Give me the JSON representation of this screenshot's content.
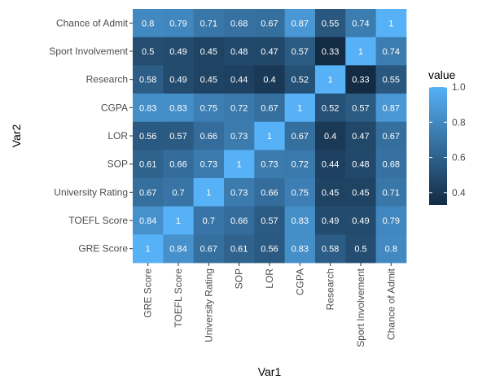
{
  "chart_data": {
    "type": "heatmap",
    "xlabel": "Var1",
    "ylabel": "Var2",
    "categories": [
      "GRE Score",
      "TOEFL Score",
      "University Rating",
      "SOP",
      "LOR",
      "CGPA",
      "Research",
      "Sport Involvement",
      "Chance of Admit"
    ],
    "rows": [
      {
        "label": "Chance of Admit",
        "values": [
          0.8,
          0.79,
          0.71,
          0.68,
          0.67,
          0.87,
          0.55,
          0.74,
          1
        ]
      },
      {
        "label": "Sport Involvement",
        "values": [
          0.5,
          0.49,
          0.45,
          0.48,
          0.47,
          0.57,
          0.33,
          1,
          0.74
        ]
      },
      {
        "label": "Research",
        "values": [
          0.58,
          0.49,
          0.45,
          0.44,
          0.4,
          0.52,
          1,
          0.33,
          0.55
        ]
      },
      {
        "label": "CGPA",
        "values": [
          0.83,
          0.83,
          0.75,
          0.72,
          0.67,
          1,
          0.52,
          0.57,
          0.87
        ]
      },
      {
        "label": "LOR",
        "values": [
          0.56,
          0.57,
          0.66,
          0.73,
          1,
          0.67,
          0.4,
          0.47,
          0.67
        ]
      },
      {
        "label": "SOP",
        "values": [
          0.61,
          0.66,
          0.73,
          1,
          0.73,
          0.72,
          0.44,
          0.48,
          0.68
        ]
      },
      {
        "label": "University Rating",
        "values": [
          0.67,
          0.7,
          1,
          0.73,
          0.66,
          0.75,
          0.45,
          0.45,
          0.71
        ]
      },
      {
        "label": "TOEFL Score",
        "values": [
          0.84,
          1,
          0.7,
          0.66,
          0.57,
          0.83,
          0.49,
          0.49,
          0.79
        ]
      },
      {
        "label": "GRE Score",
        "values": [
          1,
          0.84,
          0.67,
          0.61,
          0.56,
          0.83,
          0.58,
          0.5,
          0.8
        ]
      }
    ],
    "legend": {
      "title": "value",
      "ticks": [
        "0.4",
        "0.6",
        "0.8",
        "1.0"
      ],
      "range": [
        0.33,
        1.0
      ],
      "low_color": "#132B43",
      "high_color": "#56B1F7",
      "placement": "right"
    },
    "grid": false
  }
}
